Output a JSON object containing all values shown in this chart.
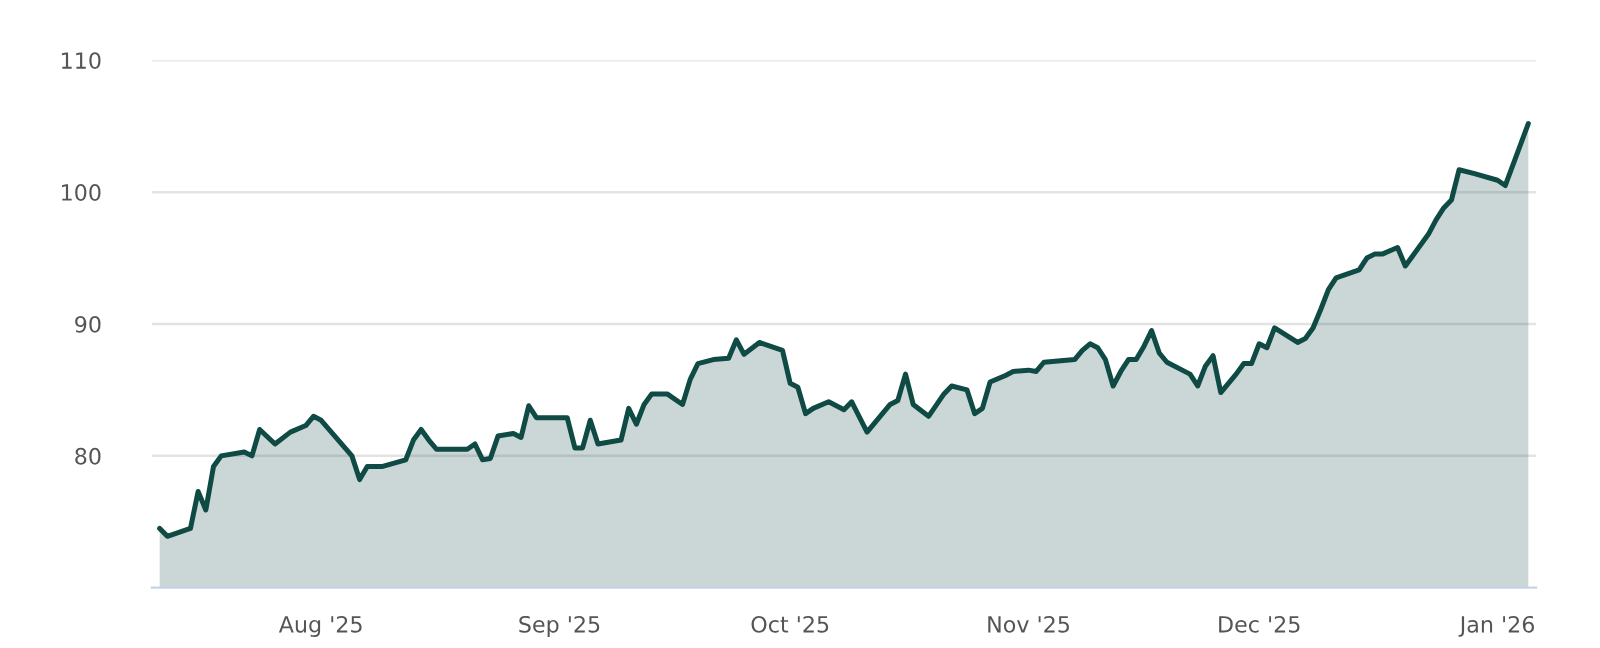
{
  "chart_data": {
    "type": "area",
    "x": [
      "2025-07-11",
      "2025-07-12",
      "2025-07-15",
      "2025-07-16",
      "2025-07-17",
      "2025-07-18",
      "2025-07-19",
      "2025-07-22",
      "2025-07-23",
      "2025-07-24",
      "2025-07-26",
      "2025-07-28",
      "2025-07-30",
      "2025-07-31",
      "2025-08-01",
      "2025-08-05",
      "2025-08-06",
      "2025-08-07",
      "2025-08-09",
      "2025-08-12",
      "2025-08-13",
      "2025-08-14",
      "2025-08-15",
      "2025-08-16",
      "2025-08-20",
      "2025-08-21",
      "2025-08-22",
      "2025-08-23",
      "2025-08-24",
      "2025-08-26",
      "2025-08-27",
      "2025-08-28",
      "2025-08-29",
      "2025-09-02",
      "2025-09-03",
      "2025-09-04",
      "2025-09-05",
      "2025-09-06",
      "2025-09-09",
      "2025-09-10",
      "2025-09-11",
      "2025-09-12",
      "2025-09-13",
      "2025-09-15",
      "2025-09-17",
      "2025-09-18",
      "2025-09-19",
      "2025-09-21",
      "2025-09-23",
      "2025-09-24",
      "2025-09-25",
      "2025-09-27",
      "2025-09-30",
      "2025-10-01",
      "2025-10-02",
      "2025-10-03",
      "2025-10-04",
      "2025-10-06",
      "2025-10-08",
      "2025-10-09",
      "2025-10-11",
      "2025-10-14",
      "2025-10-15",
      "2025-10-16",
      "2025-10-17",
      "2025-10-19",
      "2025-10-21",
      "2025-10-22",
      "2025-10-24",
      "2025-10-25",
      "2025-10-26",
      "2025-10-27",
      "2025-10-29",
      "2025-10-30",
      "2025-11-01",
      "2025-11-02",
      "2025-11-03",
      "2025-11-07",
      "2025-11-08",
      "2025-11-09",
      "2025-11-10",
      "2025-11-11",
      "2025-11-12",
      "2025-11-13",
      "2025-11-14",
      "2025-11-15",
      "2025-11-16",
      "2025-11-17",
      "2025-11-18",
      "2025-11-19",
      "2025-11-22",
      "2025-11-23",
      "2025-11-24",
      "2025-11-25",
      "2025-11-26",
      "2025-11-28",
      "2025-11-29",
      "2025-11-30",
      "2025-12-01",
      "2025-12-02",
      "2025-12-03",
      "2025-12-06",
      "2025-12-07",
      "2025-12-08",
      "2025-12-09",
      "2025-12-10",
      "2025-12-11",
      "2025-12-14",
      "2025-12-15",
      "2025-12-16",
      "2025-12-17",
      "2025-12-19",
      "2025-12-20",
      "2025-12-21",
      "2025-12-23",
      "2025-12-24",
      "2025-12-25",
      "2025-12-26",
      "2025-12-27",
      "2025-12-29",
      "2026-01-01",
      "2026-01-02",
      "2026-01-05"
    ],
    "series": [
      {
        "color": "#0f4a44",
        "values": [
          74.5,
          73.9,
          74.5,
          77.3,
          75.9,
          79.2,
          80.0,
          80.3,
          80.0,
          82.0,
          80.9,
          81.8,
          82.3,
          83.0,
          82.7,
          80.0,
          78.2,
          79.2,
          79.2,
          79.7,
          81.2,
          82.0,
          81.2,
          80.5,
          80.5,
          80.9,
          79.7,
          79.8,
          81.5,
          81.7,
          81.4,
          83.8,
          82.9,
          82.9,
          80.6,
          80.6,
          82.7,
          80.9,
          81.2,
          83.6,
          82.4,
          83.9,
          84.7,
          84.7,
          83.9,
          85.8,
          87.0,
          87.3,
          87.4,
          88.8,
          87.7,
          88.6,
          88.0,
          85.5,
          85.2,
          83.2,
          83.6,
          84.1,
          83.5,
          84.1,
          81.8,
          83.9,
          84.2,
          86.2,
          83.9,
          83.0,
          84.7,
          85.3,
          85.0,
          83.2,
          83.6,
          85.6,
          86.1,
          86.4,
          86.5,
          86.4,
          87.1,
          87.3,
          88.0,
          88.5,
          88.2,
          87.3,
          85.3,
          86.4,
          87.3,
          87.3,
          88.3,
          89.5,
          87.8,
          87.1,
          86.2,
          85.3,
          86.8,
          87.6,
          84.8,
          86.2,
          87.0,
          87.0,
          88.5,
          88.2,
          89.7,
          88.6,
          88.9,
          89.7,
          91.1,
          92.6,
          93.5,
          94.1,
          95.0,
          95.3,
          95.3,
          95.8,
          94.4,
          95.2,
          96.8,
          97.9,
          98.8,
          99.4,
          101.7,
          101.4,
          100.9,
          100.5,
          105.2
        ]
      }
    ],
    "xlim": [
      "2025-07-10",
      "2026-01-06"
    ],
    "xticks": [
      {
        "value": "2025-08-01",
        "label": "Aug '25"
      },
      {
        "value": "2025-09-01",
        "label": "Sep '25"
      },
      {
        "value": "2025-10-01",
        "label": "Oct '25"
      },
      {
        "value": "2025-11-01",
        "label": "Nov '25"
      },
      {
        "value": "2025-12-01",
        "label": "Dec '25"
      },
      {
        "value": "2026-01-01",
        "label": "Jan '26"
      }
    ],
    "ylim": [
      70,
      110
    ],
    "yticks": [
      80,
      90,
      100,
      110
    ],
    "grid": "y",
    "legend": false
  }
}
